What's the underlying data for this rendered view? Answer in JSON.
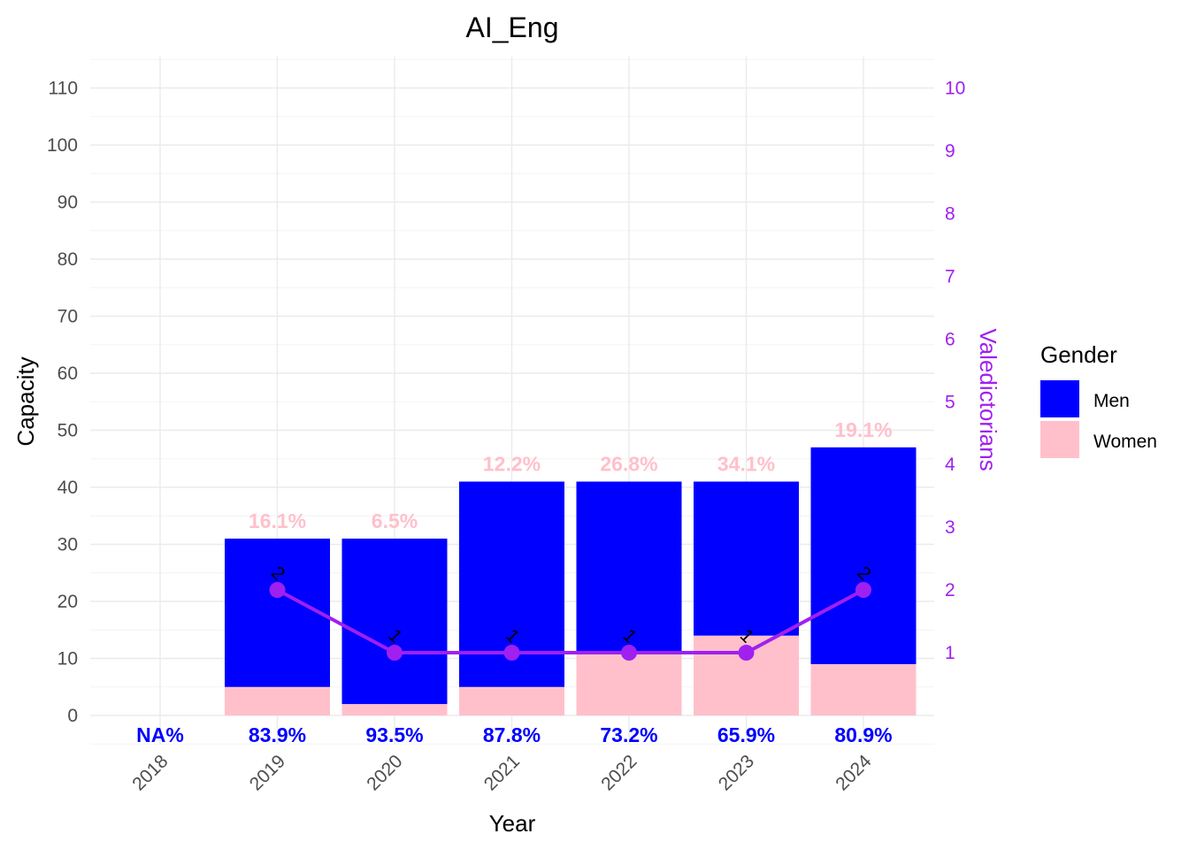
{
  "chart_data": {
    "type": "bar",
    "title": "AI_Eng",
    "xlabel": "Year",
    "ylabel": "Capacity",
    "y2label": "Valedictorians",
    "categories": [
      "2018",
      "2019",
      "2020",
      "2021",
      "2022",
      "2023",
      "2024"
    ],
    "ylim": [
      0,
      110
    ],
    "y2lim": [
      0,
      10
    ],
    "yticks": [
      0,
      10,
      20,
      30,
      40,
      50,
      60,
      70,
      80,
      90,
      100,
      110
    ],
    "y2ticks": [
      1,
      2,
      3,
      4,
      5,
      6,
      7,
      8,
      9,
      10
    ],
    "series": [
      {
        "name": "Men",
        "color": "#0000ff",
        "values": [
          null,
          26,
          29,
          36,
          30,
          27,
          38
        ]
      },
      {
        "name": "Women",
        "color": "#ffc0cb",
        "values": [
          null,
          5,
          2,
          5,
          11,
          14,
          9
        ]
      }
    ],
    "men_pct_labels": [
      "NA%",
      "83.9%",
      "93.5%",
      "87.8%",
      "73.2%",
      "65.9%",
      "80.9%"
    ],
    "women_pct_labels": [
      "",
      "16.1%",
      "6.5%",
      "12.2%",
      "26.8%",
      "34.1%",
      "19.1%"
    ],
    "valedictorians": {
      "color": "#a020f0",
      "values": [
        null,
        2,
        1,
        1,
        1,
        1,
        2
      ],
      "labels": [
        "",
        "2",
        "1",
        "1",
        "1",
        "1",
        "2"
      ]
    },
    "legend": {
      "title": "Gender",
      "placement": "right",
      "items": [
        "Men",
        "Women"
      ]
    },
    "grid": true
  }
}
